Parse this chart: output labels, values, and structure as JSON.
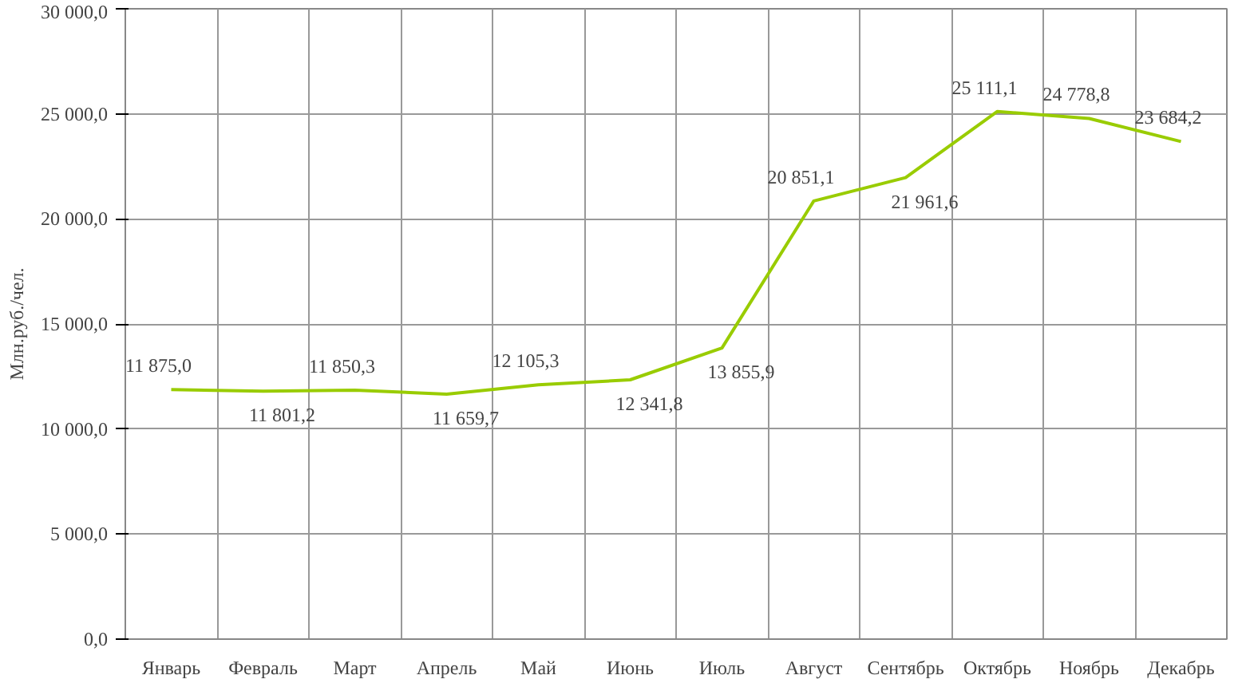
{
  "chart_data": {
    "type": "line",
    "ylabel": "Млн.руб./чел.",
    "categories": [
      "Январь",
      "Февраль",
      "Март",
      "Апрель",
      "Май",
      "Июнь",
      "Июль",
      "Август",
      "Сентябрь",
      "Октябрь",
      "Ноябрь",
      "Декабрь"
    ],
    "series": [
      {
        "color": "#99cc00",
        "values": [
          11875.0,
          11801.2,
          11850.3,
          11659.7,
          12105.3,
          12341.8,
          13855.9,
          20851.1,
          21961.6,
          25111.1,
          24778.8,
          23684.2
        ],
        "value_labels": [
          "11 875,0",
          "11 801,2",
          "11 850,3",
          "11 659,7",
          "12 105,3",
          "12 341,8",
          "13 855,9",
          "20 851,1",
          "21 961,6",
          "25 111,1",
          "24 778,8",
          "23 684,2"
        ]
      }
    ],
    "ylim": [
      0,
      30000
    ],
    "yticks": [
      {
        "value": 0,
        "label": "0,0"
      },
      {
        "value": 5000,
        "label": "5 000,0"
      },
      {
        "value": 10000,
        "label": "10 000,0"
      },
      {
        "value": 15000,
        "label": "15 000,0"
      },
      {
        "value": 20000,
        "label": "20 000,0"
      },
      {
        "value": 25000,
        "label": "25 000,0"
      },
      {
        "value": 30000,
        "label": "30 000,0"
      }
    ],
    "grid": true,
    "marker": "none",
    "line_style": "solid"
  }
}
